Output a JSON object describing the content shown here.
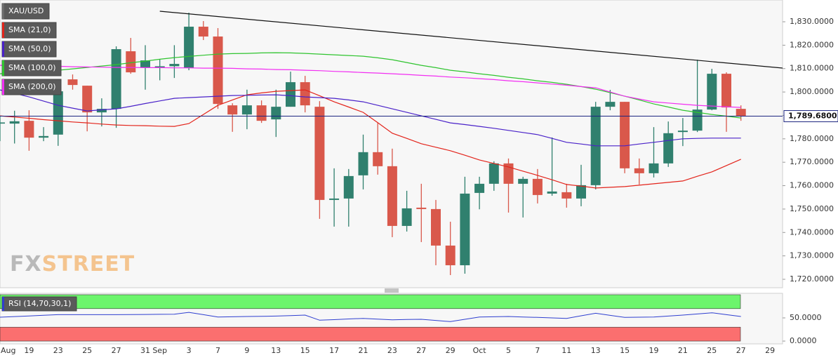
{
  "chart_data": [
    {
      "type": "candlestick",
      "categories": [
        "Aug",
        null,
        "19",
        null,
        "23",
        null,
        "25",
        null,
        "27",
        null,
        "31",
        "Sep",
        null,
        "3",
        null,
        "7",
        null,
        "9",
        null,
        "13",
        null,
        "15",
        null,
        "17",
        null,
        "21",
        null,
        "23",
        null,
        "27",
        null,
        "29",
        null,
        "Oct",
        null,
        "5",
        null,
        "7",
        null,
        "11",
        null,
        "13",
        null,
        "15",
        null,
        "19",
        null,
        "21",
        null,
        "25",
        null,
        "27",
        null,
        "29"
      ],
      "ylim": [
        1716.4,
        1839.3
      ],
      "yticks": [
        {
          "value": 1720,
          "label": "1,720.0000"
        },
        {
          "value": 1730,
          "label": "1,730.0000"
        },
        {
          "value": 1740,
          "label": "1,740.0000"
        },
        {
          "value": 1750,
          "label": "1,750.0000"
        },
        {
          "value": 1760,
          "label": "1,760.0000"
        },
        {
          "value": 1770,
          "label": "1,770.0000"
        },
        {
          "value": 1780,
          "label": "1,780.0000"
        },
        {
          "value": 1790,
          "label": "1,790.0000"
        },
        {
          "value": 1800,
          "label": "1,800.0000"
        },
        {
          "value": 1810,
          "label": "1,810.0000"
        },
        {
          "value": 1820,
          "label": "1,820.0000"
        },
        {
          "value": 1830,
          "label": "1,830.0000"
        }
      ],
      "series": [
        {
          "name": "XAU/USD",
          "type": "candlestick",
          "color": "#6b6b6b",
          "up_color": "#30806e",
          "down_color": "#d9584b",
          "open": [
            1786.5,
            1786.5,
            1787.7,
            1780.5,
            1781.8,
            1805.4,
            1802.7,
            1791.3,
            1792.8,
            1817.4,
            1810.5,
            1810.5,
            1811,
            1810.2,
            1827.9,
            1823.7,
            1794.3,
            1790.4,
            1794.3,
            1788.3,
            1793.7,
            1804.2,
            1793.7,
            1753.9,
            1754.5,
            1764.4,
            1774.3,
            1768.3,
            1742.8,
            1750.6,
            1750,
            1734.4,
            1726,
            1756.9,
            1760.8,
            1769.5,
            1760.8,
            1762.9,
            1756.6,
            1757.2,
            1754.5,
            1760.2,
            1793.7,
            1795.8,
            1767.4,
            1765.3,
            1769.5,
            1782.9,
            1783.5,
            1792.5,
            1807.8,
            1792.8,
            null,
            null
          ],
          "high": [
            1790,
            1792,
            1792.2,
            1785,
            1804,
            1807.5,
            1802.7,
            1797.3,
            1819.5,
            1823.1,
            1820,
            1814,
            1820,
            1833.9,
            1830.3,
            1827.3,
            1795.2,
            1801,
            1796.4,
            1801,
            1808.7,
            1806.9,
            1796.1,
            1767.4,
            1767.1,
            1781.8,
            1786.8,
            1775.8,
            1757.8,
            1760.8,
            1753.9,
            1744.6,
            1763.8,
            1763.8,
            1770.4,
            1771.6,
            1763.8,
            1767.1,
            1780.6,
            1760.8,
            1768.9,
            1795.8,
            1800.9,
            1795.8,
            1771.6,
            1785,
            1787.4,
            1788.9,
            1813.8,
            1809.9,
            1808.4,
            1794.3,
            null,
            null
          ],
          "low": [
            1779,
            1778,
            1774.9,
            1779,
            1777,
            1801,
            1783.2,
            1785.3,
            1784.7,
            1807.8,
            1801,
            1805,
            1806,
            1809.3,
            1822.2,
            1792.8,
            1783,
            1784.1,
            1786.8,
            1780.8,
            1793.7,
            1791.3,
            1745.8,
            1742.5,
            1742.5,
            1758.4,
            1764.7,
            1738,
            1740.4,
            1735.9,
            1726,
            1721.8,
            1722.4,
            1749.9,
            1757.8,
            1748.5,
            1746.4,
            1752.4,
            1755.7,
            1750.6,
            1751.2,
            1758.4,
            1792.2,
            1765.3,
            1760.5,
            1763.5,
            1768,
            1776.9,
            1782.9,
            1792.2,
            1783,
            1787.7,
            null,
            null
          ],
          "close": [
            1787,
            1787.5,
            1780.5,
            1781.2,
            1800.3,
            1803,
            1791.3,
            1792.8,
            1818.3,
            1808.4,
            1813.5,
            1811,
            1812,
            1827.9,
            1823.7,
            1794.9,
            1790.4,
            1794.3,
            1787.7,
            1793.7,
            1804.2,
            1794.3,
            1753.9,
            1754.5,
            1764.1,
            1774.3,
            1768.3,
            1742.8,
            1750.3,
            1750,
            1734.4,
            1726,
            1756.6,
            1760.8,
            1769.5,
            1760.8,
            1762.9,
            1756,
            1757.5,
            1754.5,
            1760.2,
            1793.7,
            1795.8,
            1767.4,
            1765.3,
            1769.5,
            1782.4,
            1783.5,
            1792.5,
            1807.8,
            1793.4,
            1789.68,
            null,
            null
          ]
        },
        {
          "name": "SMA (21,0)",
          "type": "line",
          "color": "#e3241b",
          "values": [
            1789.8,
            1789.3,
            1788.8,
            1788.2,
            1787.7,
            1787.2,
            1786.8,
            1786.3,
            1785.9,
            1785.7,
            1785.6,
            1785.4,
            1785.3,
            1786.5,
            1790.4,
            1794.3,
            1796.6,
            1798.8,
            1799.6,
            1800.3,
            1800.6,
            1800.9,
            1798.4,
            1795.8,
            1793.6,
            1791.3,
            1786.9,
            1782.4,
            1780.2,
            1777.9,
            1776.4,
            1774.9,
            1773.0,
            1771.0,
            1769.5,
            1768.0,
            1766.2,
            1764.4,
            1762.5,
            1760.5,
            1759.8,
            1759.0,
            1759.3,
            1759.6,
            1760.2,
            1760.8,
            1761.4,
            1762.0,
            1764.0,
            1765.9,
            1768.6,
            1771.3,
            null,
            null
          ]
        },
        {
          "name": "SMA (50,0)",
          "type": "line",
          "color": "#4a22c9",
          "values": [
            1800.9,
            1799.4,
            1797.9,
            1796.1,
            1794.3,
            1793.1,
            1791.9,
            1792.4,
            1792.8,
            1793.9,
            1795.1,
            1796.2,
            1797.3,
            1797.6,
            1797.9,
            1798.2,
            1798.5,
            1798.6,
            1798.7,
            1798.8,
            1798.4,
            1797.9,
            1797.6,
            1797.3,
            1796.6,
            1795.8,
            1794.3,
            1792.8,
            1791.3,
            1789.8,
            1788.3,
            1786.8,
            1786.1,
            1785.3,
            1784.5,
            1783.6,
            1782.7,
            1781.8,
            1780.2,
            1778.5,
            1777.8,
            1777.0,
            1777.0,
            1777.0,
            1777.8,
            1778.5,
            1779.3,
            1780.0,
            1780.2,
            1780.3,
            1780.3,
            1780.3,
            null,
            null
          ]
        },
        {
          "name": "SMA (100,0)",
          "type": "line",
          "color": "#2fc42f",
          "values": [
            1807.8,
            1808.2,
            1808.6,
            1808.9,
            1809.3,
            1809.9,
            1810.5,
            1811.1,
            1811.7,
            1812.5,
            1813.2,
            1814.0,
            1814.7,
            1815.2,
            1815.7,
            1816.2,
            1816.4,
            1816.5,
            1816.7,
            1816.8,
            1816.7,
            1816.5,
            1816.2,
            1815.9,
            1815.6,
            1815.3,
            1814.6,
            1813.8,
            1812.6,
            1811.4,
            1810.4,
            1809.3,
            1808.6,
            1807.8,
            1807.1,
            1806.3,
            1805.6,
            1804.8,
            1804.1,
            1803.3,
            1802.3,
            1801.2,
            1799.7,
            1798.2,
            1796.6,
            1794.9,
            1793.6,
            1792.2,
            1791.3,
            1790.4,
            1789.7,
            1788.9,
            null,
            null
          ]
        },
        {
          "name": "SMA (200,0)",
          "type": "line",
          "color": "#f22ef2",
          "values": [
            1811.4,
            1811.3,
            1811.2,
            1811.1,
            1811.0,
            1810.8,
            1810.7,
            1810.6,
            1810.5,
            1810.5,
            1810.4,
            1810.4,
            1810.3,
            1810.3,
            1810.2,
            1810.2,
            1810.1,
            1809.9,
            1809.8,
            1809.6,
            1809.5,
            1809.3,
            1809.1,
            1808.8,
            1808.6,
            1808.3,
            1808.1,
            1807.8,
            1807.5,
            1807.1,
            1806.8,
            1806.4,
            1806.1,
            1805.7,
            1805.3,
            1804.8,
            1804.4,
            1803.9,
            1803.4,
            1802.9,
            1802.3,
            1801.8,
            1800.0,
            1798.2,
            1797.0,
            1795.8,
            1795.3,
            1794.8,
            1794.3,
            1794.0,
            1793.7,
            1793.4,
            null,
            null
          ]
        }
      ],
      "trendline": {
        "color": "#111111",
        "x": [
          11,
          53.9
        ],
        "values": [
          1834.5,
          1810.2
        ]
      },
      "last_price": {
        "value": 1789.68,
        "label": "1,789.6800",
        "color": "#1c2580"
      },
      "watermark": [
        "FX",
        "STREET"
      ]
    },
    {
      "type": "line",
      "label": "RSI (14,70,30,1)",
      "ylim": [
        -6,
        103
      ],
      "yticks": [
        {
          "value": 0,
          "label": "0.0000"
        },
        {
          "value": 50,
          "label": "50.0000"
        }
      ],
      "bands": [
        {
          "from": 70,
          "to": 100,
          "color": "#6cf56c"
        },
        {
          "from": 0,
          "to": 30,
          "color": "#fb6f6f"
        }
      ],
      "series": [
        {
          "color": "#2f3fd0",
          "values": [
            51.5,
            52.9,
            54.3,
            55.6,
            57,
            57,
            57,
            57,
            57,
            57.3,
            57.5,
            57.8,
            58,
            62,
            57,
            52,
            52.5,
            53,
            53.5,
            54,
            55,
            56,
            45,
            46.3,
            47.7,
            49,
            47.5,
            46,
            46.5,
            47,
            44.5,
            42,
            47,
            52,
            52.5,
            53,
            52,
            51,
            50,
            49,
            54.5,
            60,
            55.5,
            51,
            51.5,
            52,
            54,
            56,
            58.5,
            61,
            57,
            53,
            null,
            null
          ]
        }
      ]
    }
  ]
}
